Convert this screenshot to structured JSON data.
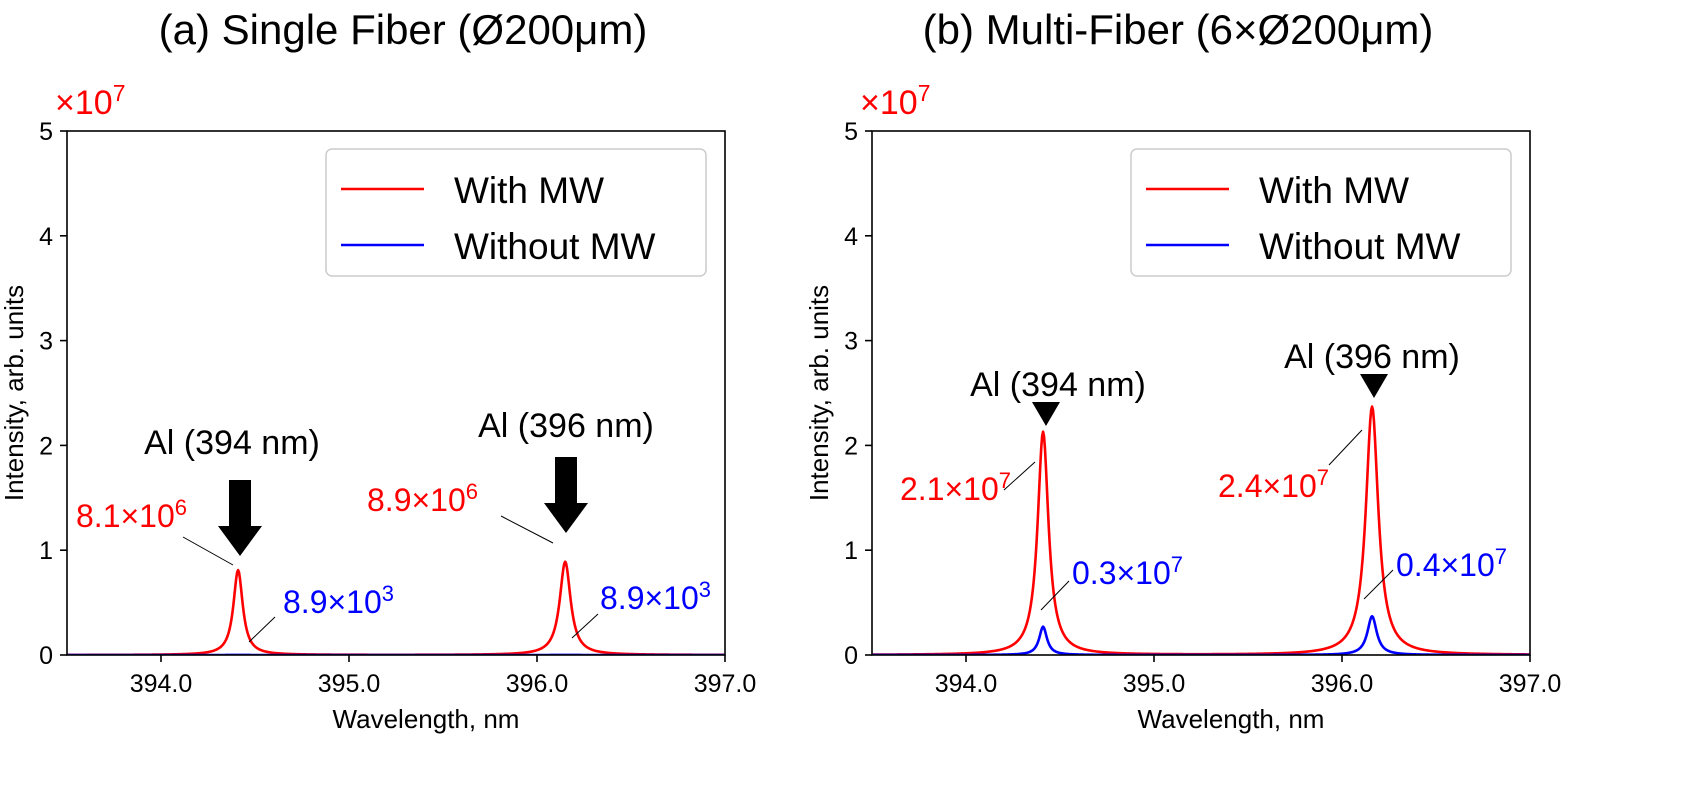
{
  "colors": {
    "with_mw": "#ff0000",
    "without_mw": "#0000ff",
    "text": "#000000"
  },
  "chart_data": [
    {
      "type": "line",
      "panel": "a",
      "title": "(a) Single Fiber (Ø200μm)",
      "xlabel": "Wavelength, nm",
      "ylabel": "Intensity, arb. units",
      "multiplier": {
        "base": "×10",
        "exp": "7"
      },
      "xlim": [
        393.5,
        397.0
      ],
      "ylim": [
        0,
        5
      ],
      "xticks": [
        394.0,
        395.0,
        396.0,
        397.0
      ],
      "xtick_labels": [
        "394.0",
        "395.0",
        "396.0",
        "397.0"
      ],
      "yticks": [
        0,
        1,
        2,
        3,
        4,
        5
      ],
      "ytick_labels": [
        "0",
        "1",
        "2",
        "3",
        "4",
        "5"
      ],
      "legend": {
        "placement": "top-right",
        "entries": [
          "With MW",
          "Without MW"
        ]
      },
      "series": [
        {
          "name": "With MW",
          "color": "#ff0000",
          "peaks": [
            {
              "center": 394.41,
              "height": 0.81,
              "width": 0.03
            },
            {
              "center": 396.15,
              "height": 0.89,
              "width": 0.035
            }
          ]
        },
        {
          "name": "Without MW",
          "color": "#0000ff",
          "peaks": [
            {
              "center": 394.41,
              "height": 0.00089,
              "width": 0.03
            },
            {
              "center": 396.15,
              "height": 0.00089,
              "width": 0.035
            }
          ]
        }
      ],
      "annotations": [
        {
          "kind": "line-label",
          "text": "Al (394 nm)",
          "color": "#000000"
        },
        {
          "kind": "line-label",
          "text": "Al (396 nm)",
          "color": "#000000"
        },
        {
          "kind": "value",
          "base": "8.1×10",
          "exp": "6",
          "color": "#ff0000"
        },
        {
          "kind": "value",
          "base": "8.9×10",
          "exp": "6",
          "color": "#ff0000"
        },
        {
          "kind": "value",
          "base": "8.9×10",
          "exp": "3",
          "color": "#0000ff"
        },
        {
          "kind": "value",
          "base": "8.9×10",
          "exp": "3",
          "color": "#0000ff"
        }
      ]
    },
    {
      "type": "line",
      "panel": "b",
      "title": "(b) Multi-Fiber (6×Ø200μm)",
      "xlabel": "Wavelength, nm",
      "ylabel": "Intensity, arb. units",
      "multiplier": {
        "base": "×10",
        "exp": "7"
      },
      "xlim": [
        393.5,
        397.0
      ],
      "ylim": [
        0,
        5
      ],
      "xticks": [
        394.0,
        395.0,
        396.0,
        397.0
      ],
      "xtick_labels": [
        "394.0",
        "395.0",
        "396.0",
        "397.0"
      ],
      "yticks": [
        0,
        1,
        2,
        3,
        4,
        5
      ],
      "ytick_labels": [
        "0",
        "1",
        "2",
        "3",
        "4",
        "5"
      ],
      "legend": {
        "placement": "top-right",
        "entries": [
          "With MW",
          "Without MW"
        ]
      },
      "series": [
        {
          "name": "With MW",
          "color": "#ff0000",
          "peaks": [
            {
              "center": 394.41,
              "height": 2.13,
              "width": 0.035
            },
            {
              "center": 396.16,
              "height": 2.37,
              "width": 0.04
            }
          ]
        },
        {
          "name": "Without MW",
          "color": "#0000ff",
          "peaks": [
            {
              "center": 394.41,
              "height": 0.27,
              "width": 0.025
            },
            {
              "center": 396.16,
              "height": 0.37,
              "width": 0.03
            }
          ]
        }
      ],
      "annotations": [
        {
          "kind": "line-label",
          "text": "Al (394 nm)",
          "color": "#000000"
        },
        {
          "kind": "line-label",
          "text": "Al (396 nm)",
          "color": "#000000"
        },
        {
          "kind": "value",
          "base": "2.1×10",
          "exp": "7",
          "color": "#ff0000"
        },
        {
          "kind": "value",
          "base": "2.4×10",
          "exp": "7",
          "color": "#ff0000"
        },
        {
          "kind": "value",
          "base": "0.3×10",
          "exp": "7",
          "color": "#0000ff"
        },
        {
          "kind": "value",
          "base": "0.4×10",
          "exp": "7",
          "color": "#0000ff"
        }
      ]
    }
  ]
}
